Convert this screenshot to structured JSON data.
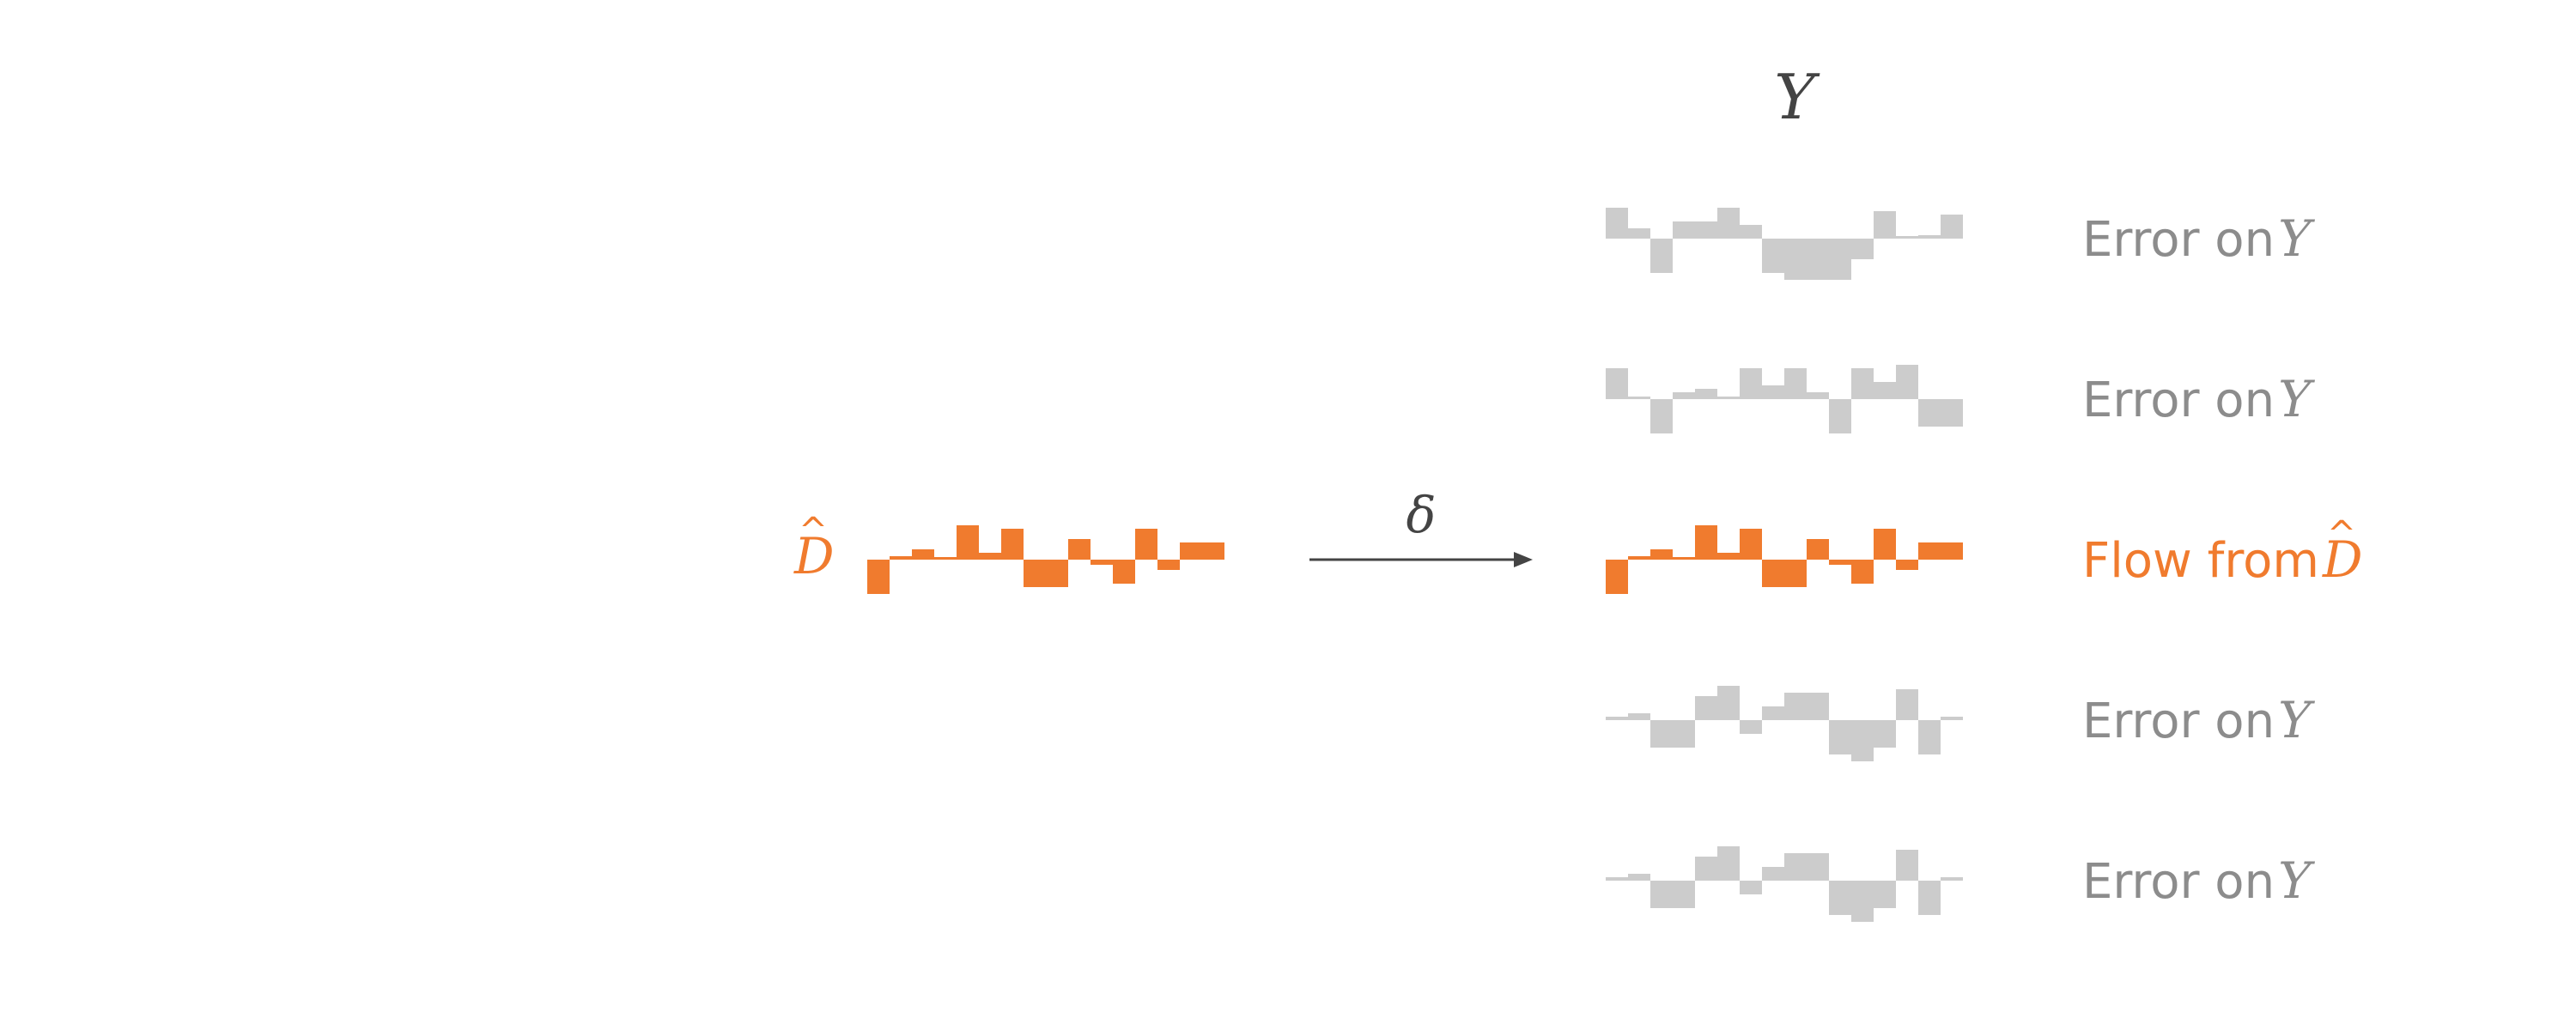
{
  "header": {
    "y_symbol": "Y"
  },
  "source": {
    "symbol": "D",
    "hat": "^",
    "bars": [
      -1,
      0.1,
      0.3,
      0,
      1,
      0.2,
      0.9,
      -0.8,
      -0.8,
      0.6,
      -0.15,
      -0.7,
      0.9,
      -0.3,
      0.5,
      0.5
    ]
  },
  "arrow": {
    "symbol": "δ"
  },
  "rows": [
    {
      "prefix": "Error on ",
      "symbol": "Y",
      "hat": "",
      "highlight": false,
      "bars": [
        0.9,
        0.3,
        -1,
        0.5,
        0.5,
        0.9,
        0.4,
        -1,
        -1.2,
        -1.2,
        -1.2,
        -0.6,
        0.8,
        0,
        0.1,
        0.7
      ]
    },
    {
      "prefix": "Error on ",
      "symbol": "Y",
      "hat": "",
      "highlight": false,
      "bars": [
        0.9,
        0,
        -1,
        0.2,
        0.3,
        0,
        0.9,
        0.4,
        0.9,
        0.2,
        -1,
        0.9,
        0.5,
        1,
        -0.8,
        -0.8
      ]
    },
    {
      "prefix": "Flow from ",
      "symbol": "D",
      "hat": "^",
      "highlight": true,
      "bars": [
        -1,
        0.1,
        0.3,
        0,
        1,
        0.2,
        0.9,
        -0.8,
        -0.8,
        0.6,
        -0.15,
        -0.7,
        0.9,
        -0.3,
        0.5,
        0.5
      ]
    },
    {
      "prefix": "Error on ",
      "symbol": "Y",
      "hat": "",
      "highlight": false,
      "bars": [
        0.1,
        0.2,
        -0.8,
        -0.8,
        0.7,
        1,
        -0.4,
        0.4,
        0.8,
        0.8,
        -1,
        -1.2,
        -0.8,
        0.9,
        -1,
        0.1
      ]
    },
    {
      "prefix": "Error on ",
      "symbol": "Y",
      "hat": "",
      "highlight": false,
      "bars": [
        0.1,
        0.2,
        -0.8,
        -0.8,
        0.7,
        1,
        -0.4,
        0.4,
        0.8,
        0.8,
        -1,
        -1.2,
        -0.8,
        0.9,
        -1,
        0.1
      ]
    }
  ],
  "colors": {
    "highlight": "#f07b2e",
    "muted": "#cccccc",
    "muted_text": "#8c8c8c",
    "dark": "#444444"
  }
}
